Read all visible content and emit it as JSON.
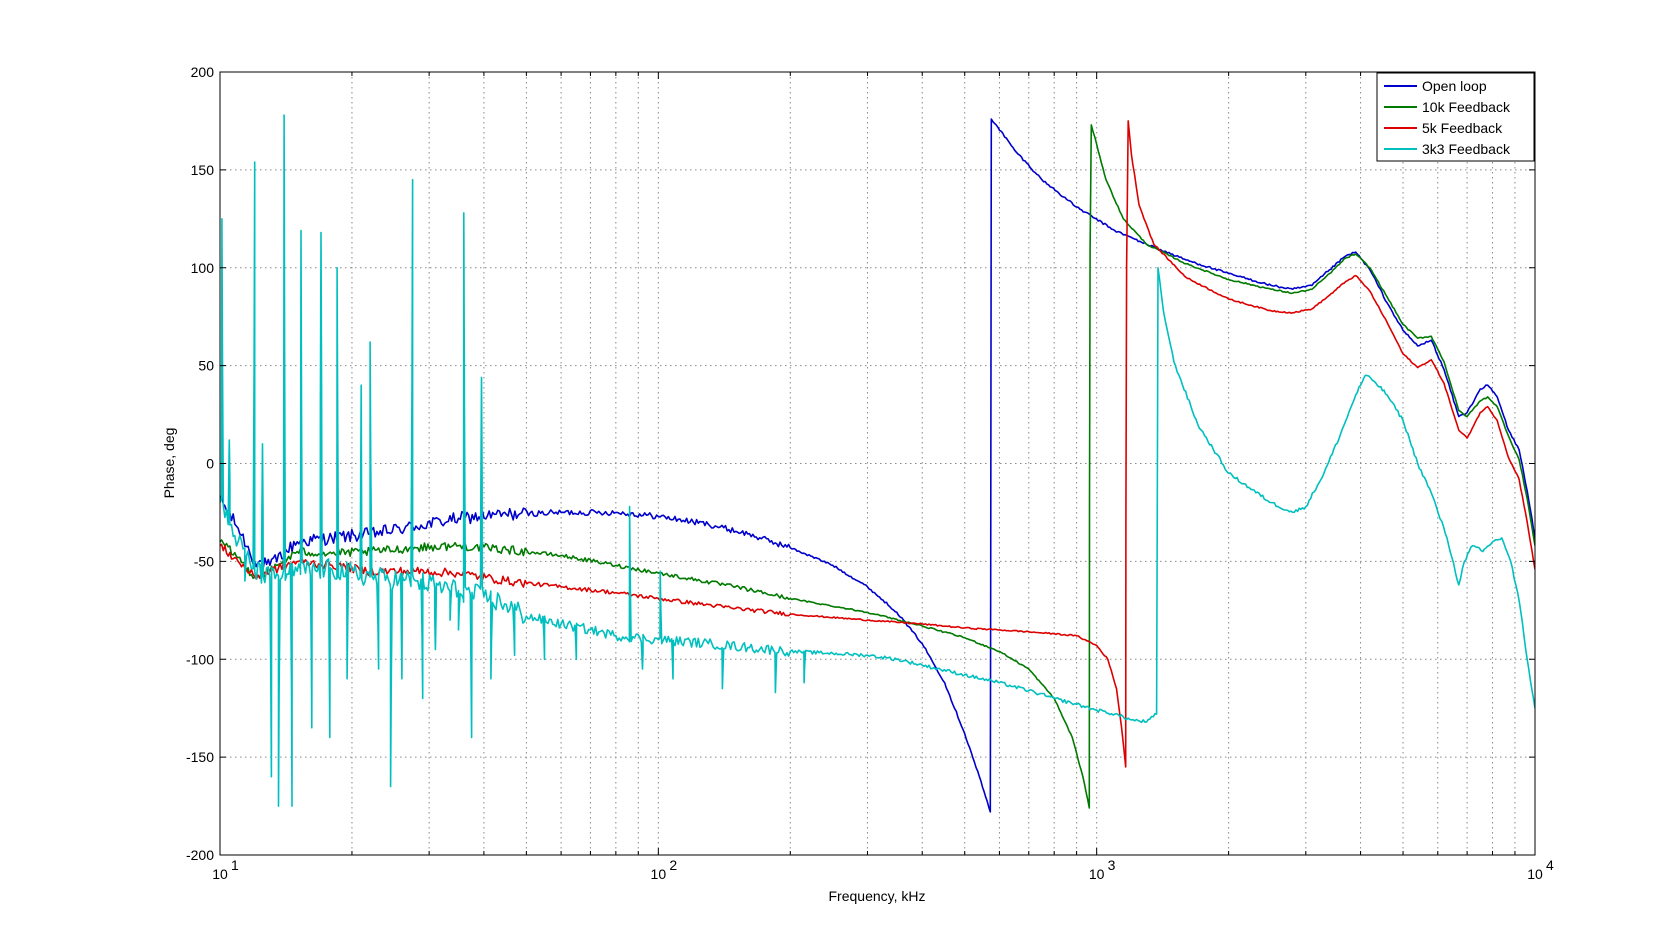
{
  "chart_data": {
    "type": "line",
    "title": "",
    "xlabel": "Frequency, kHz",
    "ylabel": "Phase, deg",
    "xscale": "log",
    "xlim": [
      10,
      10000
    ],
    "ylim": [
      -200,
      200
    ],
    "yticks": [
      -200,
      -150,
      -100,
      -50,
      0,
      50,
      100,
      150,
      200
    ],
    "xticks": [
      10,
      100,
      1000,
      10000
    ],
    "xtick_labels": [
      {
        "base": "10",
        "exp": "1"
      },
      {
        "base": "10",
        "exp": "2"
      },
      {
        "base": "10",
        "exp": "3"
      },
      {
        "base": "10",
        "exp": "4"
      }
    ],
    "grid": true,
    "legend_position": "top-right",
    "series": [
      {
        "name": "Open loop",
        "color": "#0000cc",
        "noise": 3,
        "points": [
          [
            10,
            -18
          ],
          [
            11,
            -33
          ],
          [
            12,
            -50
          ],
          [
            13,
            -52
          ],
          [
            15,
            -40
          ],
          [
            18,
            -38
          ],
          [
            22,
            -36
          ],
          [
            28,
            -32
          ],
          [
            35,
            -28
          ],
          [
            45,
            -26
          ],
          [
            60,
            -25
          ],
          [
            80,
            -25
          ],
          [
            100,
            -27
          ],
          [
            130,
            -31
          ],
          [
            160,
            -36
          ],
          [
            200,
            -43
          ],
          [
            250,
            -52
          ],
          [
            300,
            -63
          ],
          [
            350,
            -76
          ],
          [
            400,
            -92
          ],
          [
            450,
            -112
          ],
          [
            500,
            -138
          ],
          [
            540,
            -160
          ],
          [
            572,
            -178
          ],
          [
            573,
            -58
          ],
          [
            575,
            176
          ],
          [
            590,
            173
          ],
          [
            650,
            160
          ],
          [
            750,
            145
          ],
          [
            900,
            131
          ],
          [
            1100,
            119
          ],
          [
            1300,
            112
          ],
          [
            1600,
            104
          ],
          [
            2000,
            97
          ],
          [
            2500,
            91
          ],
          [
            2800,
            89
          ],
          [
            3100,
            91
          ],
          [
            3400,
            99
          ],
          [
            3700,
            106
          ],
          [
            3900,
            108
          ],
          [
            4200,
            99
          ],
          [
            4600,
            82
          ],
          [
            5000,
            68
          ],
          [
            5400,
            60
          ],
          [
            5800,
            63
          ],
          [
            6200,
            48
          ],
          [
            6700,
            24
          ],
          [
            7000,
            26
          ],
          [
            7500,
            38
          ],
          [
            7800,
            40
          ],
          [
            8200,
            34
          ],
          [
            8700,
            17
          ],
          [
            9200,
            7
          ],
          [
            9600,
            -14
          ],
          [
            10000,
            -38
          ]
        ]
      },
      {
        "name": "10k Feedback",
        "color": "#007a00",
        "noise": 2,
        "points": [
          [
            10,
            -40
          ],
          [
            11,
            -48
          ],
          [
            12,
            -58
          ],
          [
            13,
            -55
          ],
          [
            15,
            -45
          ],
          [
            18,
            -46
          ],
          [
            22,
            -45
          ],
          [
            28,
            -43
          ],
          [
            35,
            -42
          ],
          [
            45,
            -44
          ],
          [
            60,
            -47
          ],
          [
            80,
            -52
          ],
          [
            100,
            -56
          ],
          [
            150,
            -63
          ],
          [
            200,
            -69
          ],
          [
            300,
            -76
          ],
          [
            400,
            -83
          ],
          [
            500,
            -89
          ],
          [
            600,
            -96
          ],
          [
            700,
            -105
          ],
          [
            800,
            -120
          ],
          [
            880,
            -140
          ],
          [
            930,
            -160
          ],
          [
            962,
            -176
          ],
          [
            963,
            -20
          ],
          [
            966,
            110
          ],
          [
            972,
            173
          ],
          [
            1000,
            163
          ],
          [
            1050,
            145
          ],
          [
            1150,
            125
          ],
          [
            1300,
            112
          ],
          [
            1600,
            102
          ],
          [
            2000,
            94
          ],
          [
            2500,
            89
          ],
          [
            2800,
            87
          ],
          [
            3100,
            89
          ],
          [
            3400,
            97
          ],
          [
            3700,
            105
          ],
          [
            3900,
            107
          ],
          [
            4200,
            100
          ],
          [
            4600,
            85
          ],
          [
            5000,
            71
          ],
          [
            5400,
            64
          ],
          [
            5800,
            65
          ],
          [
            6200,
            52
          ],
          [
            6700,
            27
          ],
          [
            7000,
            24
          ],
          [
            7500,
            32
          ],
          [
            7800,
            34
          ],
          [
            8200,
            29
          ],
          [
            8700,
            14
          ],
          [
            9200,
            2
          ],
          [
            9600,
            -18
          ],
          [
            10000,
            -42
          ]
        ]
      },
      {
        "name": "5k Feedback",
        "color": "#dd0000",
        "noise": 2,
        "points": [
          [
            10,
            -42
          ],
          [
            11,
            -50
          ],
          [
            12,
            -58
          ],
          [
            13,
            -55
          ],
          [
            15,
            -50
          ],
          [
            18,
            -52
          ],
          [
            22,
            -55
          ],
          [
            28,
            -55
          ],
          [
            35,
            -56
          ],
          [
            45,
            -60
          ],
          [
            60,
            -63
          ],
          [
            80,
            -66
          ],
          [
            100,
            -69
          ],
          [
            150,
            -74
          ],
          [
            200,
            -77
          ],
          [
            300,
            -80
          ],
          [
            400,
            -82
          ],
          [
            500,
            -84
          ],
          [
            600,
            -85
          ],
          [
            700,
            -86
          ],
          [
            800,
            -87
          ],
          [
            900,
            -88
          ],
          [
            1000,
            -93
          ],
          [
            1060,
            -100
          ],
          [
            1110,
            -115
          ],
          [
            1140,
            -135
          ],
          [
            1165,
            -155
          ],
          [
            1166,
            -30
          ],
          [
            1170,
            100
          ],
          [
            1180,
            175
          ],
          [
            1200,
            158
          ],
          [
            1250,
            132
          ],
          [
            1350,
            112
          ],
          [
            1600,
            95
          ],
          [
            2000,
            84
          ],
          [
            2500,
            78
          ],
          [
            2800,
            77
          ],
          [
            3100,
            79
          ],
          [
            3400,
            86
          ],
          [
            3700,
            93
          ],
          [
            3900,
            96
          ],
          [
            4200,
            88
          ],
          [
            4600,
            72
          ],
          [
            5000,
            56
          ],
          [
            5400,
            49
          ],
          [
            5800,
            53
          ],
          [
            6200,
            41
          ],
          [
            6700,
            17
          ],
          [
            7000,
            13
          ],
          [
            7500,
            26
          ],
          [
            7800,
            29
          ],
          [
            8200,
            22
          ],
          [
            8700,
            3
          ],
          [
            9200,
            -8
          ],
          [
            9600,
            -30
          ],
          [
            10000,
            -54
          ]
        ]
      },
      {
        "name": "3k3 Feedback",
        "color": "#00bfbf",
        "noise": 5,
        "points": [
          [
            10,
            -20
          ],
          [
            11,
            -40
          ],
          [
            12,
            -55
          ],
          [
            13,
            -58
          ],
          [
            15,
            -55
          ],
          [
            18,
            -54
          ],
          [
            22,
            -58
          ],
          [
            28,
            -60
          ],
          [
            35,
            -65
          ],
          [
            40,
            -68
          ],
          [
            45,
            -72
          ],
          [
            50,
            -78
          ],
          [
            60,
            -82
          ],
          [
            70,
            -85
          ],
          [
            80,
            -88
          ],
          [
            100,
            -90
          ],
          [
            130,
            -92
          ],
          [
            160,
            -94
          ],
          [
            200,
            -96
          ],
          [
            250,
            -97
          ],
          [
            300,
            -98
          ],
          [
            350,
            -100
          ],
          [
            400,
            -103
          ],
          [
            500,
            -108
          ],
          [
            600,
            -112
          ],
          [
            700,
            -116
          ],
          [
            800,
            -120
          ],
          [
            900,
            -123
          ],
          [
            1000,
            -126
          ],
          [
            1100,
            -128
          ],
          [
            1200,
            -131
          ],
          [
            1300,
            -132
          ],
          [
            1370,
            -128
          ],
          [
            1375,
            -20
          ],
          [
            1380,
            100
          ],
          [
            1420,
            78
          ],
          [
            1500,
            52
          ],
          [
            1700,
            20
          ],
          [
            2000,
            -5
          ],
          [
            2500,
            -20
          ],
          [
            2800,
            -25
          ],
          [
            3000,
            -22
          ],
          [
            3300,
            -5
          ],
          [
            3600,
            15
          ],
          [
            3900,
            35
          ],
          [
            4100,
            45
          ],
          [
            4300,
            42
          ],
          [
            4600,
            35
          ],
          [
            5000,
            22
          ],
          [
            5400,
            0
          ],
          [
            5800,
            -15
          ],
          [
            6300,
            -38
          ],
          [
            6700,
            -62
          ],
          [
            6900,
            -50
          ],
          [
            7200,
            -42
          ],
          [
            7600,
            -45
          ],
          [
            8000,
            -40
          ],
          [
            8400,
            -38
          ],
          [
            8800,
            -50
          ],
          [
            9200,
            -70
          ],
          [
            9600,
            -100
          ],
          [
            10000,
            -125
          ]
        ]
      }
    ],
    "spikes": [
      {
        "x": 10.1,
        "y": 125
      },
      {
        "x": 10.5,
        "y": 12
      },
      {
        "x": 11.4,
        "y": -60
      },
      {
        "x": 12.0,
        "y": 154
      },
      {
        "x": 12.5,
        "y": 10
      },
      {
        "x": 13.1,
        "y": -160
      },
      {
        "x": 13.6,
        "y": -175
      },
      {
        "x": 14.0,
        "y": 178
      },
      {
        "x": 14.6,
        "y": -175
      },
      {
        "x": 15.3,
        "y": 119
      },
      {
        "x": 16.2,
        "y": -135
      },
      {
        "x": 17.0,
        "y": 118
      },
      {
        "x": 17.8,
        "y": -140
      },
      {
        "x": 18.5,
        "y": 100
      },
      {
        "x": 19.5,
        "y": -110
      },
      {
        "x": 21.0,
        "y": 40
      },
      {
        "x": 22.0,
        "y": 62
      },
      {
        "x": 23.0,
        "y": -105
      },
      {
        "x": 24.5,
        "y": -165
      },
      {
        "x": 26.0,
        "y": -110
      },
      {
        "x": 27.5,
        "y": 145
      },
      {
        "x": 29.0,
        "y": -120
      },
      {
        "x": 31.0,
        "y": -95
      },
      {
        "x": 33.5,
        "y": -80
      },
      {
        "x": 35.0,
        "y": -85
      },
      {
        "x": 36.0,
        "y": 128
      },
      {
        "x": 37.5,
        "y": -140
      },
      {
        "x": 39.5,
        "y": 44
      },
      {
        "x": 41.5,
        "y": -110
      },
      {
        "x": 47.0,
        "y": -98
      },
      {
        "x": 55.0,
        "y": -100
      },
      {
        "x": 65.0,
        "y": -100
      },
      {
        "x": 86.0,
        "y": -22
      },
      {
        "x": 92.0,
        "y": -105
      },
      {
        "x": 101.0,
        "y": -55
      },
      {
        "x": 108.0,
        "y": -110
      },
      {
        "x": 140.0,
        "y": -115
      },
      {
        "x": 185.0,
        "y": -117
      },
      {
        "x": 215.0,
        "y": -112
      }
    ],
    "legend": [
      "Open loop",
      "10k Feedback",
      "5k Feedback",
      "3k3 Feedback"
    ]
  }
}
